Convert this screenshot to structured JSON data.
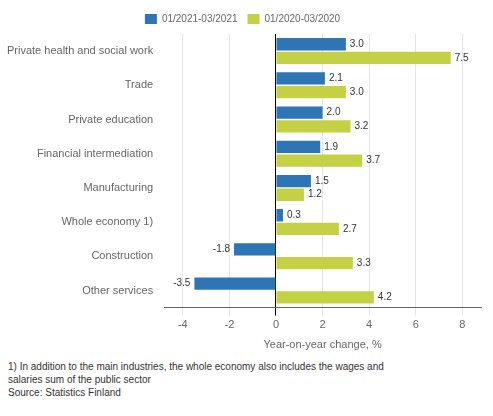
{
  "chart_data": {
    "type": "bar",
    "orientation": "horizontal",
    "categories": [
      "Private health and social work",
      "Trade",
      "Private education",
      "Financial intermediation",
      "Manufacturing",
      "Whole economy 1)",
      "Construction",
      "Other services"
    ],
    "series": [
      {
        "name": "01/2021-03/2021",
        "color": "#2E75B6",
        "values": [
          3.0,
          2.1,
          2.0,
          1.9,
          1.5,
          0.3,
          -1.8,
          -3.5
        ],
        "value_labels": [
          "3.0",
          "2.1",
          "2.0",
          "1.9",
          "1.5",
          "0.3",
          "-1.8",
          "-3.5"
        ]
      },
      {
        "name": "01/2020-03/2020",
        "color": "#C5D145",
        "values": [
          7.5,
          3.0,
          3.2,
          3.7,
          1.2,
          2.7,
          3.3,
          4.2
        ],
        "value_labels": [
          "7.5",
          "3.0",
          "3.2",
          "3.7",
          "1.2",
          "2.7",
          "3.3",
          "4.2"
        ]
      }
    ],
    "xlabel": "Year-on-year change, %",
    "xlim": [
      -4.8,
      8.8
    ],
    "xticks": [
      -4,
      -2,
      0,
      2,
      4,
      6,
      8
    ],
    "grid": true,
    "legend": "top",
    "data_labels": true,
    "annotations": [
      "1) In addition to the main industries, the whole economy also includes the wages and",
      "salaries sum of the public sector",
      "Source: Statistics Finland"
    ]
  }
}
